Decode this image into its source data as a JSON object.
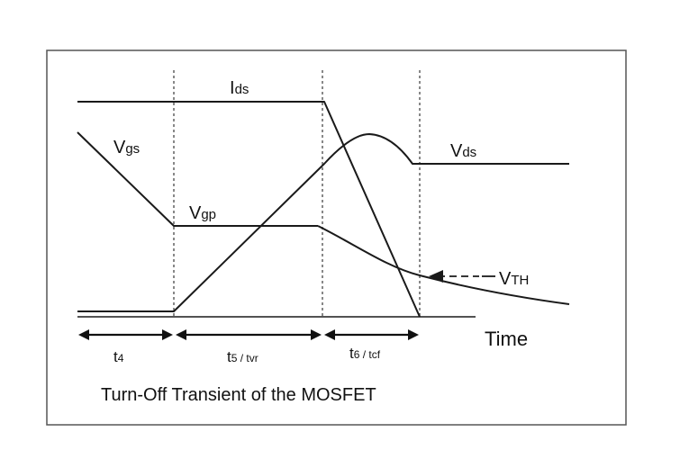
{
  "caption": "Turn-Off Transient of the MOSFET",
  "axis": {
    "time_label": "Time"
  },
  "signals": {
    "ids": {
      "main": "I",
      "sub": "ds"
    },
    "vgs": {
      "main": "V",
      "sub": "gs"
    },
    "vgp": {
      "main": "V",
      "sub": "gp"
    },
    "vds": {
      "main": "V",
      "sub": "ds"
    },
    "vth": {
      "main": "V",
      "sub": "TH"
    }
  },
  "intervals": [
    {
      "main": "t",
      "sub": "4"
    },
    {
      "main": "t",
      "sub": "5 / t",
      "sub2": "vr"
    },
    {
      "main": "t",
      "sub": "6 / t",
      "sub2": "cf"
    }
  ],
  "colors": {
    "waveform": "#1a1a1a",
    "divider": "#555555",
    "frame": "#555555"
  }
}
